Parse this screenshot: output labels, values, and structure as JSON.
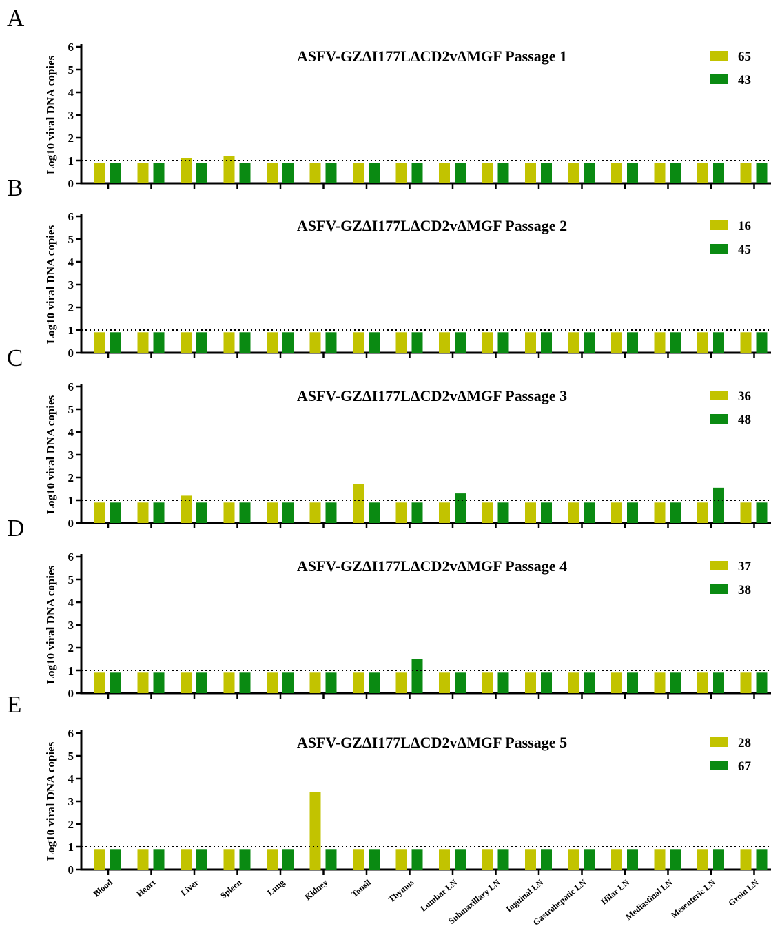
{
  "colors": {
    "series_a": "#c2c300",
    "series_b": "#0a8a12",
    "axis": "#000000"
  },
  "chart_data": [
    {
      "panel_label": "A",
      "type": "bar",
      "title": "ASFV-GZΔI177LΔCD2vΔMGF Passage  1",
      "ylabel": "Log10 viral DNA copies",
      "xlabel": "",
      "ylim": [
        0,
        6
      ],
      "yticks": [
        "0",
        "1",
        "2",
        "3",
        "4",
        "5",
        "6"
      ],
      "threshold": 1,
      "legend_position": "top-right",
      "categories": [
        "Blood",
        "Heart",
        "Liver",
        "Spleen",
        "Lung",
        "Kidney",
        "Tonsil",
        "Thymus",
        "Lumbar LN",
        "Submaxillary LN",
        "Inguinal LN",
        "Gastrohepatic LN",
        "Hilar LN",
        "Mediastinal LN",
        "Mesenteric LN",
        "Groin LN"
      ],
      "series": [
        {
          "name": "65",
          "values": [
            0.9,
            0.9,
            1.1,
            1.2,
            0.9,
            0.9,
            0.9,
            0.9,
            0.9,
            0.9,
            0.9,
            0.9,
            0.9,
            0.9,
            0.9,
            0.9
          ]
        },
        {
          "name": "43",
          "values": [
            0.9,
            0.9,
            0.9,
            0.9,
            0.9,
            0.9,
            0.9,
            0.9,
            0.9,
            0.9,
            0.9,
            0.9,
            0.9,
            0.9,
            0.9,
            0.9
          ]
        }
      ]
    },
    {
      "panel_label": "B",
      "type": "bar",
      "title": "ASFV-GZΔI177LΔCD2vΔMGF Passage  2",
      "ylabel": "Log10 viral DNA copies",
      "xlabel": "",
      "ylim": [
        0,
        6
      ],
      "yticks": [
        "0",
        "1",
        "2",
        "3",
        "4",
        "5",
        "6"
      ],
      "threshold": 1,
      "legend_position": "top-right",
      "categories": [
        "Blood",
        "Heart",
        "Liver",
        "Spleen",
        "Lung",
        "Kidney",
        "Tonsil",
        "Thymus",
        "Lumbar LN",
        "Submaxillary LN",
        "Inguinal LN",
        "Gastrohepatic LN",
        "Hilar LN",
        "Mediastinal LN",
        "Mesenteric LN",
        "Groin LN"
      ],
      "series": [
        {
          "name": "16",
          "values": [
            0.9,
            0.9,
            0.9,
            0.9,
            0.9,
            0.9,
            0.9,
            0.9,
            0.9,
            0.9,
            0.9,
            0.9,
            0.9,
            0.9,
            0.9,
            0.9
          ]
        },
        {
          "name": "45",
          "values": [
            0.9,
            0.9,
            0.9,
            0.9,
            0.9,
            0.9,
            0.9,
            0.9,
            0.9,
            0.9,
            0.9,
            0.9,
            0.9,
            0.9,
            0.9,
            0.9
          ]
        }
      ]
    },
    {
      "panel_label": "C",
      "type": "bar",
      "title": "ASFV-GZΔI177LΔCD2vΔMGF Passage  3",
      "ylabel": "Log10 viral DNA copies",
      "xlabel": "",
      "ylim": [
        0,
        6
      ],
      "yticks": [
        "0",
        "1",
        "2",
        "3",
        "4",
        "5",
        "6"
      ],
      "threshold": 1,
      "legend_position": "top-right",
      "categories": [
        "Blood",
        "Heart",
        "Liver",
        "Spleen",
        "Lung",
        "Kidney",
        "Tonsil",
        "Thymus",
        "Lumbar LN",
        "Submaxillary LN",
        "Inguinal LN",
        "Gastrohepatic LN",
        "Hilar LN",
        "Mediastinal LN",
        "Mesenteric LN",
        "Groin LN"
      ],
      "series": [
        {
          "name": "36",
          "values": [
            0.9,
            0.9,
            1.2,
            0.9,
            0.9,
            0.9,
            1.7,
            0.9,
            0.9,
            0.9,
            0.9,
            0.9,
            0.9,
            0.9,
            0.9,
            0.9
          ]
        },
        {
          "name": "48",
          "values": [
            0.9,
            0.9,
            0.9,
            0.9,
            0.9,
            0.9,
            0.9,
            0.9,
            1.3,
            0.9,
            0.9,
            0.9,
            0.9,
            0.9,
            1.55,
            0.9
          ]
        }
      ]
    },
    {
      "panel_label": "D",
      "type": "bar",
      "title": "ASFV-GZΔI177LΔCD2vΔMGF Passage  4",
      "ylabel": "Log10 viral DNA copies",
      "xlabel": "",
      "ylim": [
        0,
        6
      ],
      "yticks": [
        "0",
        "1",
        "2",
        "3",
        "4",
        "5",
        "6"
      ],
      "threshold": 1,
      "legend_position": "top-right",
      "categories": [
        "Blood",
        "Heart",
        "Liver",
        "Spleen",
        "Lung",
        "Kidney",
        "Tonsil",
        "Thymus",
        "Lumbar LN",
        "Submaxillary LN",
        "Inguinal LN",
        "Gastrohepatic LN",
        "Hilar LN",
        "Mediastinal LN",
        "Mesenteric LN",
        "Groin LN"
      ],
      "series": [
        {
          "name": "37",
          "values": [
            0.9,
            0.9,
            0.9,
            0.9,
            0.9,
            0.9,
            0.9,
            0.9,
            0.9,
            0.9,
            0.9,
            0.9,
            0.9,
            0.9,
            0.9,
            0.9
          ]
        },
        {
          "name": "38",
          "values": [
            0.9,
            0.9,
            0.9,
            0.9,
            0.9,
            0.9,
            0.9,
            1.5,
            0.9,
            0.9,
            0.9,
            0.9,
            0.9,
            0.9,
            0.9,
            0.9
          ]
        }
      ]
    },
    {
      "panel_label": "E",
      "type": "bar",
      "title": "ASFV-GZΔI177LΔCD2vΔMGF Passage  5",
      "ylabel": "Log10 viral DNA copies",
      "xlabel": "",
      "ylim": [
        0,
        6
      ],
      "yticks": [
        "0",
        "1",
        "2",
        "3",
        "4",
        "5",
        "6"
      ],
      "threshold": 1,
      "legend_position": "top-right",
      "categories": [
        "Blood",
        "Heart",
        "Liver",
        "Spleen",
        "Lung",
        "Kidney",
        "Tonsil",
        "Thymus",
        "Lumbar LN",
        "Submaxillary LN",
        "Inguinal LN",
        "Gastrohepatic LN",
        "Hilar LN",
        "Mediastinal LN",
        "Mesenteric LN",
        "Groin LN"
      ],
      "series": [
        {
          "name": "28",
          "values": [
            0.9,
            0.9,
            0.9,
            0.9,
            0.9,
            3.4,
            0.9,
            0.9,
            0.9,
            0.9,
            0.9,
            0.9,
            0.9,
            0.9,
            0.9,
            0.9
          ]
        },
        {
          "name": "67",
          "values": [
            0.9,
            0.9,
            0.9,
            0.9,
            0.9,
            0.9,
            0.9,
            0.9,
            0.9,
            0.9,
            0.9,
            0.9,
            0.9,
            0.9,
            0.9,
            0.9
          ]
        }
      ]
    }
  ]
}
